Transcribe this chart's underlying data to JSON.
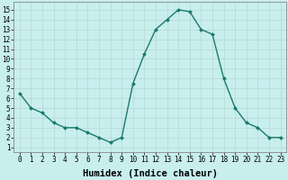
{
  "x": [
    0,
    1,
    2,
    3,
    4,
    5,
    6,
    7,
    8,
    9,
    10,
    11,
    12,
    13,
    14,
    15,
    16,
    17,
    18,
    19,
    20,
    21,
    22,
    23
  ],
  "y": [
    6.5,
    5.0,
    4.5,
    3.5,
    3.0,
    3.0,
    2.5,
    2.0,
    1.5,
    2.0,
    7.5,
    10.5,
    13.0,
    14.0,
    15.0,
    14.8,
    13.0,
    12.5,
    8.0,
    5.0,
    3.5,
    3.0,
    2.0,
    2.0
  ],
  "xlabel": "Humidex (Indice chaleur)",
  "xlim": [
    -0.5,
    23.5
  ],
  "ylim": [
    0.5,
    15.8
  ],
  "xticks": [
    0,
    1,
    2,
    3,
    4,
    5,
    6,
    7,
    8,
    9,
    10,
    11,
    12,
    13,
    14,
    15,
    16,
    17,
    18,
    19,
    20,
    21,
    22,
    23
  ],
  "yticks": [
    1,
    2,
    3,
    4,
    5,
    6,
    7,
    8,
    9,
    10,
    11,
    12,
    13,
    14,
    15
  ],
  "line_color": "#1a7a6e",
  "marker_color": "#1a7a6e",
  "bg_color": "#c8eeee",
  "grid_major_color": "#b8d8d0",
  "grid_minor_color": "#c0e0d8",
  "tick_label_fontsize": 5.5,
  "xlabel_fontsize": 7.5,
  "marker_size": 2.0,
  "line_width": 1.0
}
